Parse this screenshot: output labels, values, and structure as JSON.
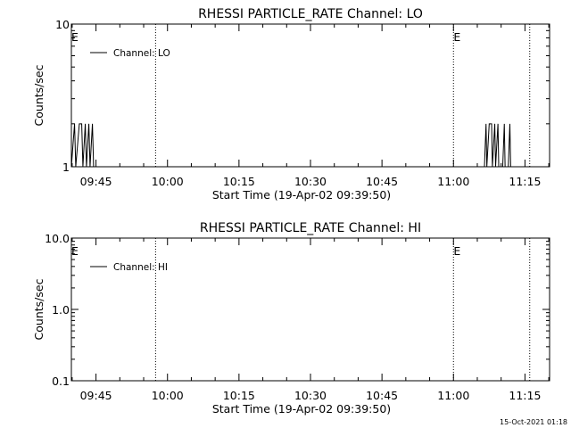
{
  "footer": {
    "timestamp": "15-Oct-2021 01:18"
  },
  "chart_data": [
    {
      "type": "line",
      "title": "RHESSI PARTICLE_RATE Channel: LO",
      "xlabel": "Start Time (19-Apr-02 09:39:50)",
      "ylabel": "Counts/sec",
      "y_scale": "log",
      "ylim": [
        1,
        10
      ],
      "y_ticks": [
        "1",
        "10"
      ],
      "xlim": [
        "09:39:50",
        "11:20:10"
      ],
      "x_ticks": [
        "09:45",
        "10:00",
        "10:15",
        "10:30",
        "10:45",
        "11:00",
        "11:15"
      ],
      "legend": {
        "position": "top-left",
        "entries": [
          "Channel: LO"
        ]
      },
      "markers": [
        {
          "x": "09:39:50",
          "label": "E"
        },
        {
          "x": "11:00:00",
          "label": "E"
        }
      ],
      "vlines": [
        "09:57:30",
        "11:00:00",
        "11:16:00"
      ],
      "series": [
        {
          "points": [
            [
              "09:39:50",
              1
            ],
            [
              "09:40:30",
              2
            ],
            [
              "09:40:45",
              1
            ],
            [
              "09:41:30",
              2
            ],
            [
              "09:42:00",
              2
            ],
            [
              "09:42:15",
              1
            ],
            [
              "09:42:45",
              2
            ],
            [
              "09:43:00",
              1
            ],
            [
              "09:43:30",
              2
            ],
            [
              "09:43:45",
              1
            ],
            [
              "09:44:15",
              2
            ],
            [
              "09:44:30",
              1
            ],
            [
              "09:45:00",
              1
            ],
            [
              "11:06:30",
              1
            ],
            [
              "11:06:50",
              2
            ],
            [
              "11:07:00",
              1
            ],
            [
              "11:07:30",
              2
            ],
            [
              "11:08:00",
              2
            ],
            [
              "11:08:10",
              1
            ],
            [
              "11:08:40",
              2
            ],
            [
              "11:08:50",
              1
            ],
            [
              "11:09:20",
              2
            ],
            [
              "11:09:30",
              1
            ],
            [
              "11:10:20",
              1
            ],
            [
              "11:10:40",
              2
            ],
            [
              "11:10:50",
              1
            ],
            [
              "11:11:30",
              1
            ],
            [
              "11:11:50",
              2
            ],
            [
              "11:12:00",
              1
            ],
            [
              "11:12:30",
              1
            ]
          ]
        }
      ]
    },
    {
      "type": "line",
      "title": "RHESSI PARTICLE_RATE Channel: HI",
      "xlabel": "Start Time (19-Apr-02 09:39:50)",
      "ylabel": "Counts/sec",
      "y_scale": "log",
      "ylim": [
        0.1,
        10
      ],
      "y_ticks": [
        "0.1",
        "1.0",
        "10.0"
      ],
      "xlim": [
        "09:39:50",
        "11:20:10"
      ],
      "x_ticks": [
        "09:45",
        "10:00",
        "10:15",
        "10:30",
        "10:45",
        "11:00",
        "11:15"
      ],
      "legend": {
        "position": "top-left",
        "entries": [
          "Channel: HI"
        ]
      },
      "markers": [
        {
          "x": "09:39:50",
          "label": "E"
        },
        {
          "x": "11:00:00",
          "label": "E"
        }
      ],
      "vlines": [
        "09:57:30",
        "11:00:00",
        "11:16:00"
      ],
      "series": [
        {
          "points": []
        }
      ]
    }
  ]
}
